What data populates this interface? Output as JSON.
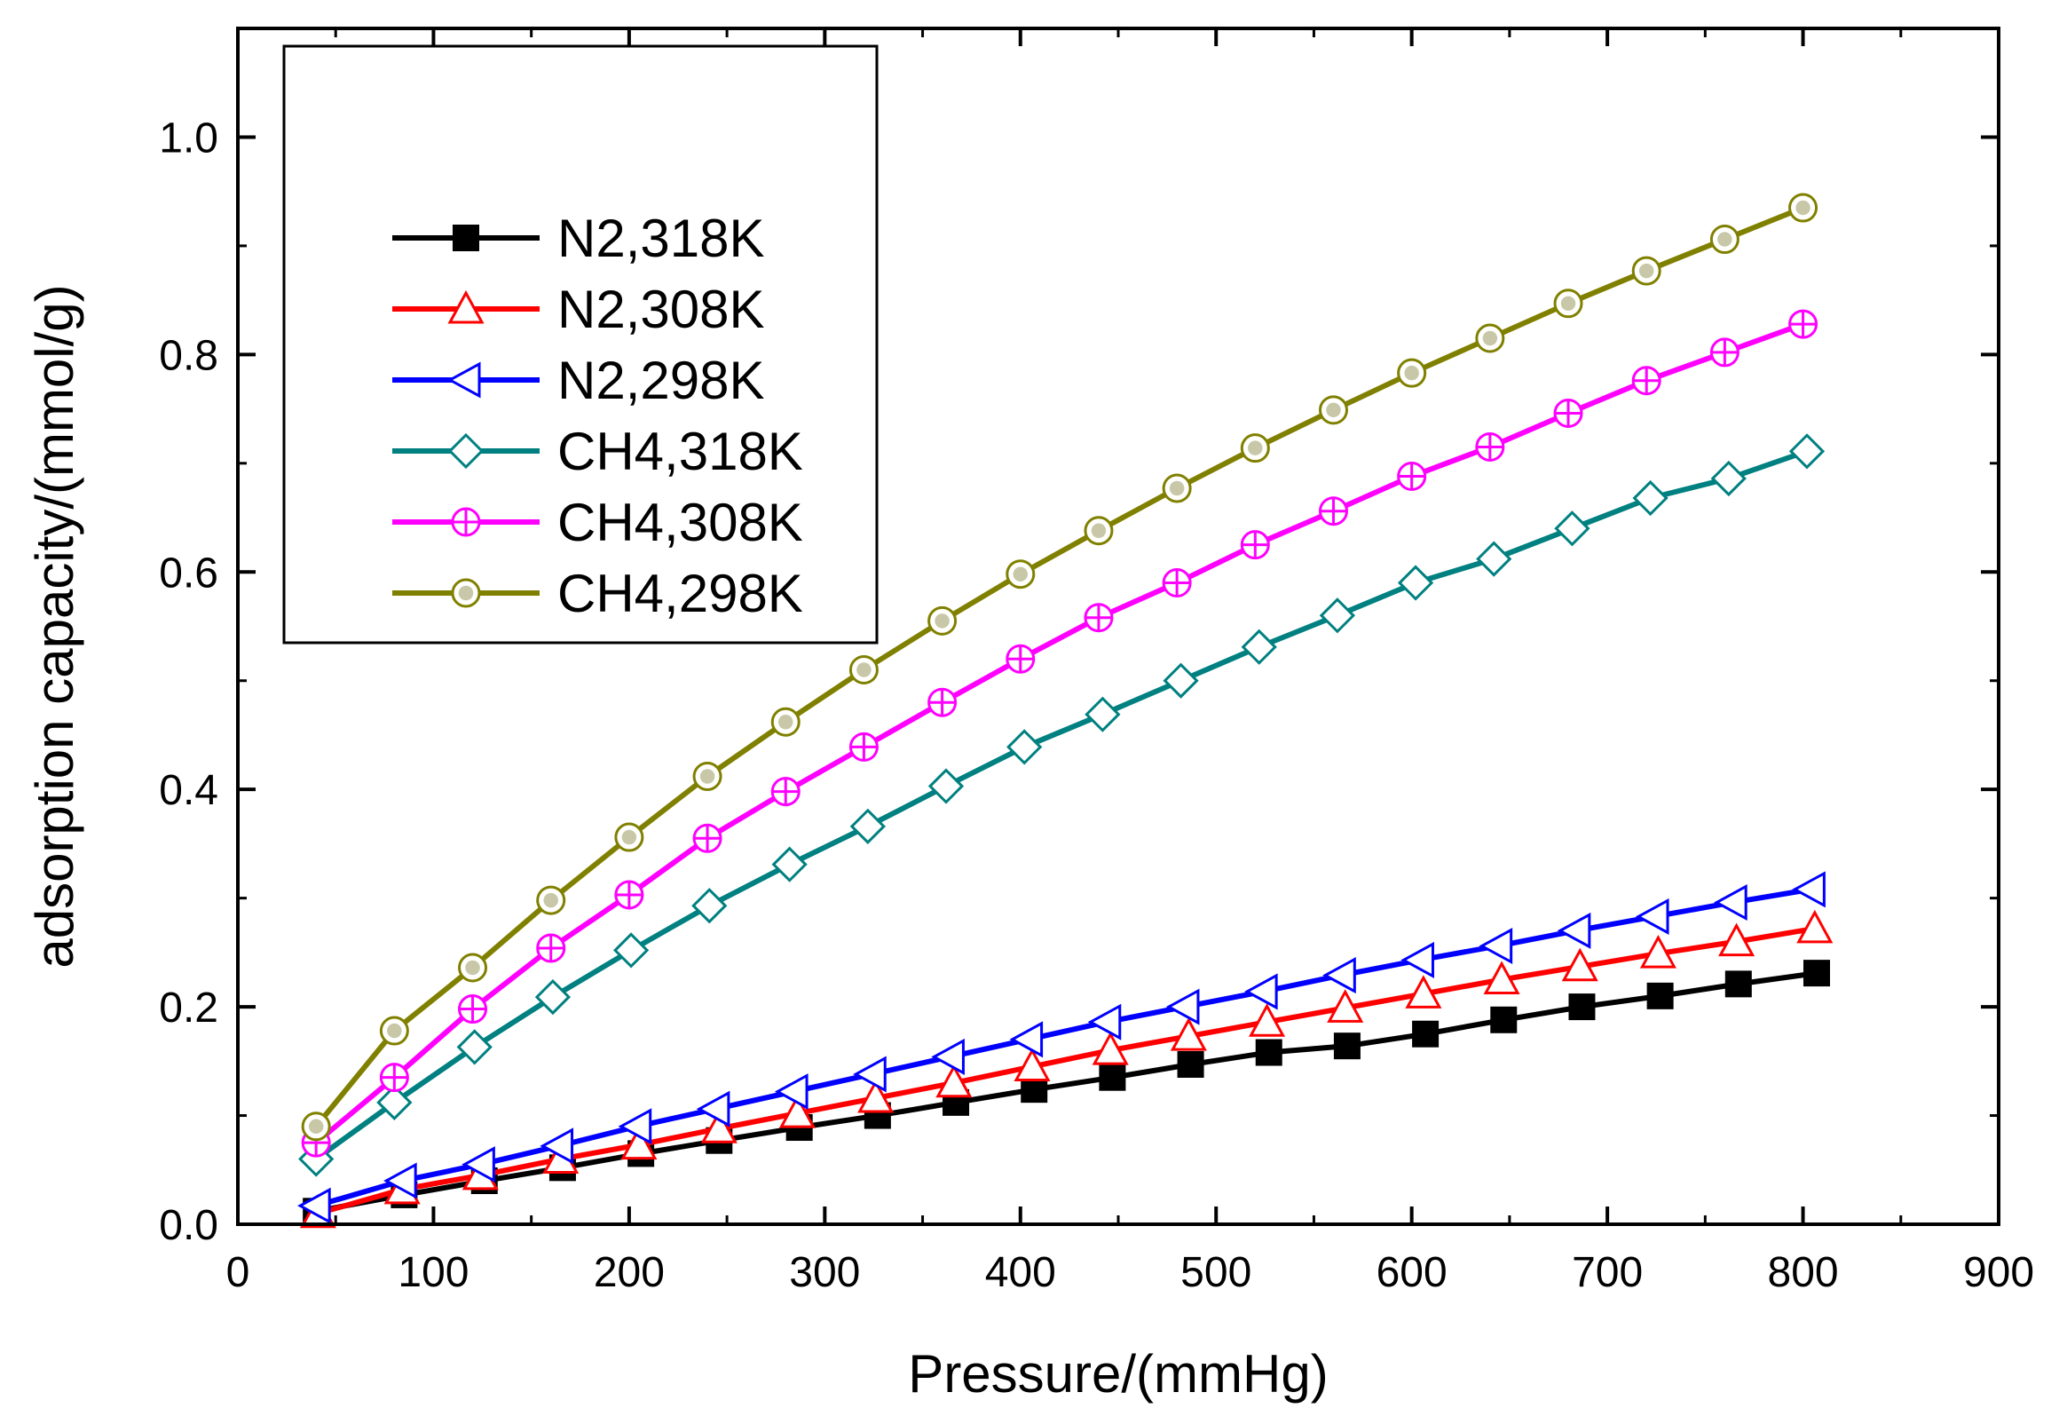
{
  "chart_data": {
    "type": "line",
    "title": "",
    "xlabel": "Pressure/(mmHg)",
    "ylabel": "adsorption capacity/(mmol/g)",
    "xlim": [
      0,
      900
    ],
    "ylim": [
      0,
      1.1
    ],
    "xticks": [
      0,
      100,
      200,
      300,
      400,
      500,
      600,
      700,
      800,
      900
    ],
    "yticks": [
      0.0,
      0.2,
      0.4,
      0.6,
      0.8,
      1.0
    ],
    "xtick_labels": [
      "0",
      "100",
      "200",
      "300",
      "400",
      "500",
      "600",
      "700",
      "800",
      "900"
    ],
    "ytick_labels": [
      "0.0",
      "0.2",
      "0.4",
      "0.6",
      "0.8",
      "1.0"
    ],
    "grid": false,
    "legend_position": "top-left",
    "series": [
      {
        "name": "N2,318K",
        "color": "#000000",
        "marker": "filled-square",
        "x": [
          40,
          85,
          126,
          166,
          206,
          246,
          287,
          327,
          367,
          407,
          447,
          487,
          527,
          567,
          607,
          647,
          687,
          727,
          767,
          807
        ],
        "values": [
          0.012,
          0.027,
          0.04,
          0.052,
          0.065,
          0.077,
          0.089,
          0.1,
          0.112,
          0.124,
          0.135,
          0.147,
          0.158,
          0.164,
          0.175,
          0.188,
          0.2,
          0.21,
          0.221,
          0.231
        ]
      },
      {
        "name": "N2,308K",
        "color": "#ff0000",
        "marker": "open-triangle-up",
        "x": [
          41,
          84,
          124,
          165,
          205,
          246,
          286,
          326,
          366,
          406,
          446,
          486,
          526,
          566,
          606,
          646,
          686,
          726,
          766,
          806
        ],
        "values": [
          0.01,
          0.032,
          0.045,
          0.06,
          0.073,
          0.088,
          0.102,
          0.116,
          0.13,
          0.145,
          0.16,
          0.173,
          0.186,
          0.199,
          0.212,
          0.225,
          0.237,
          0.249,
          0.26,
          0.272
        ]
      },
      {
        "name": "N2,298K",
        "color": "#0000ff",
        "marker": "open-triangle-left",
        "x": [
          40,
          84,
          124,
          164,
          204,
          244,
          284,
          324,
          364,
          404,
          444,
          484,
          524,
          564,
          604,
          644,
          684,
          724,
          764,
          804
        ],
        "values": [
          0.017,
          0.04,
          0.055,
          0.072,
          0.09,
          0.106,
          0.122,
          0.138,
          0.154,
          0.17,
          0.186,
          0.2,
          0.214,
          0.229,
          0.243,
          0.256,
          0.27,
          0.283,
          0.296,
          0.308
        ]
      },
      {
        "name": "CH4,318K",
        "color": "#008080",
        "marker": "open-diamond",
        "x": [
          40,
          80,
          121,
          161,
          201,
          241,
          282,
          322,
          362,
          402,
          442,
          482,
          522,
          562,
          602,
          642,
          682,
          722,
          762,
          802
        ],
        "values": [
          0.06,
          0.112,
          0.163,
          0.209,
          0.252,
          0.293,
          0.331,
          0.366,
          0.403,
          0.439,
          0.469,
          0.5,
          0.531,
          0.56,
          0.59,
          0.612,
          0.64,
          0.668,
          0.686,
          0.711
        ]
      },
      {
        "name": "CH4,308K",
        "color": "#ff00ff",
        "marker": "open-crossed-circle",
        "x": [
          40,
          80,
          120,
          160,
          200,
          240,
          280,
          320,
          360,
          400,
          440,
          480,
          520,
          560,
          600,
          640,
          680,
          720,
          760,
          800
        ],
        "values": [
          0.075,
          0.135,
          0.198,
          0.254,
          0.303,
          0.355,
          0.398,
          0.439,
          0.48,
          0.52,
          0.558,
          0.59,
          0.625,
          0.656,
          0.688,
          0.715,
          0.746,
          0.776,
          0.802,
          0.828
        ]
      },
      {
        "name": "CH4,298K",
        "color": "#808000",
        "marker": "open-dotted-circle",
        "x": [
          40,
          80,
          120,
          160,
          200,
          240,
          280,
          320,
          360,
          400,
          440,
          480,
          520,
          560,
          600,
          640,
          680,
          720,
          760,
          800
        ],
        "values": [
          0.09,
          0.178,
          0.236,
          0.298,
          0.356,
          0.412,
          0.462,
          0.51,
          0.555,
          0.598,
          0.638,
          0.677,
          0.714,
          0.749,
          0.783,
          0.815,
          0.847,
          0.877,
          0.906,
          0.935
        ]
      }
    ]
  }
}
